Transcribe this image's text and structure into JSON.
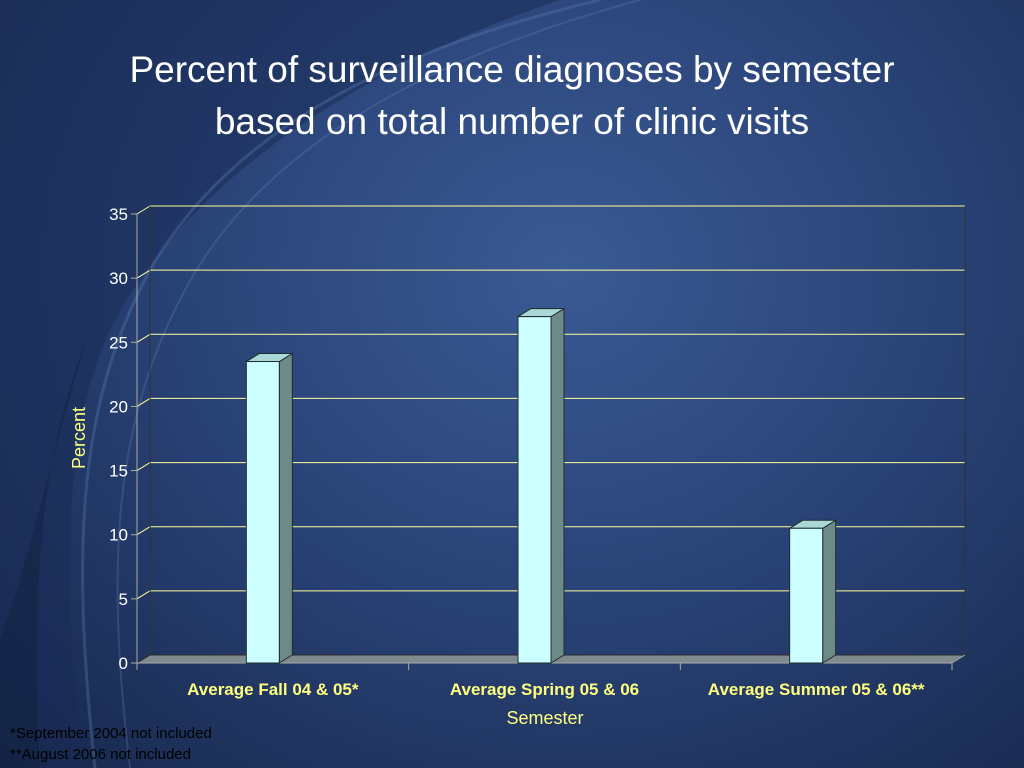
{
  "chart_data": {
    "type": "bar",
    "title": "Percent of surveillance diagnoses by semester based on total number of clinic visits",
    "title_lines": [
      "Percent of surveillance diagnoses by semester",
      "based on total number of clinic visits"
    ],
    "xlabel": "Semester",
    "ylabel": "Percent",
    "categories": [
      "Average Fall 04 & 05*",
      "Average Spring 05 & 06",
      "Average Summer 05 & 06**"
    ],
    "values": [
      23.5,
      27,
      10.5
    ],
    "ylim": [
      0,
      35
    ],
    "yticks": [
      0,
      5,
      10,
      15,
      20,
      25,
      30,
      35
    ],
    "grid": true,
    "legend": "none",
    "bar_color": "#ccffff",
    "style": "3d"
  },
  "footnotes": [
    "*September 2004 not included",
    "**August 2006 not included"
  ],
  "colors": {
    "background": "#2a4478",
    "gridline": "#ffff99",
    "axis_text": "#ffff80",
    "tick_text": "#ffffff",
    "title_text": "#ffffff"
  }
}
